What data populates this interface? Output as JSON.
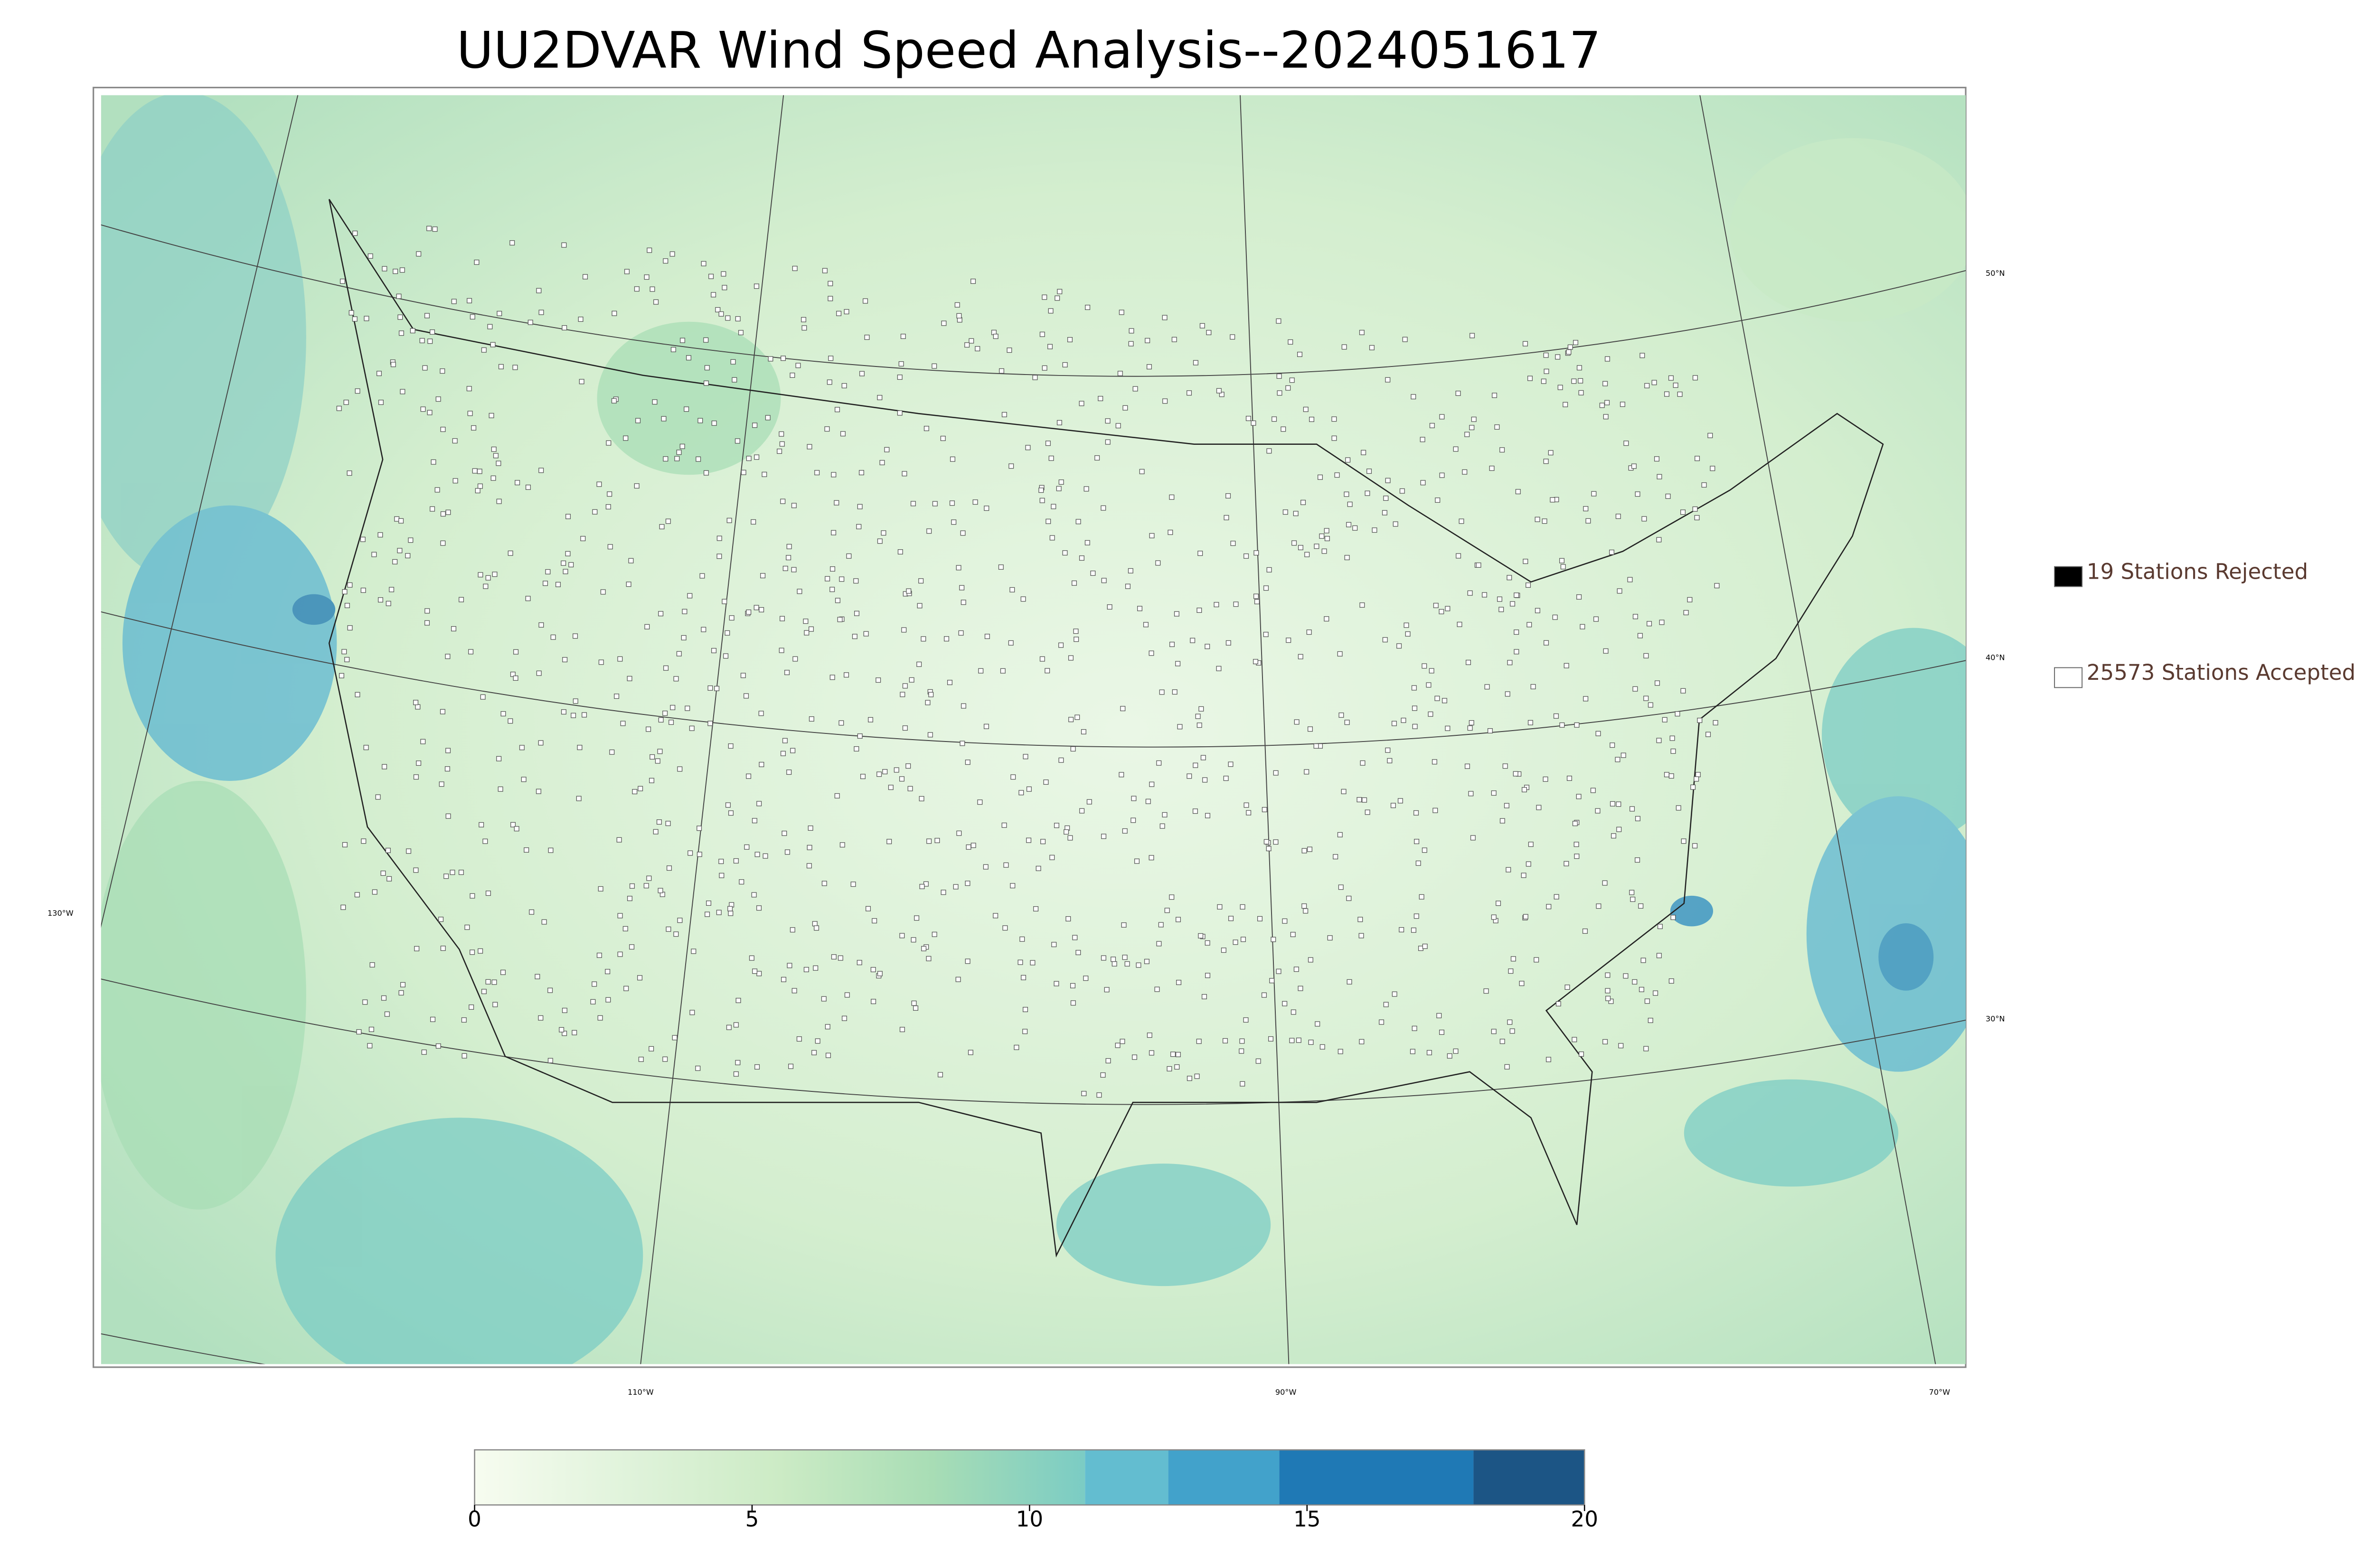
{
  "title": "UU2DVAR Wind Speed Analysis--2024051617",
  "legend": [
    {
      "label": "19 Stations Rejected",
      "fill": "#000000"
    },
    {
      "label": "25573 Stations Accepted",
      "fill": "#ffffff"
    }
  ],
  "graticule": {
    "lat": [
      "50°N",
      "40°N",
      "30°N"
    ],
    "lon": [
      "130°W",
      "110°W",
      "90°W",
      "70°W"
    ]
  },
  "colorbar": {
    "lim": [
      0,
      20
    ],
    "ticks": [
      0,
      5,
      10,
      15,
      20
    ],
    "levels": [
      0,
      11,
      12.5,
      14.5,
      18,
      20
    ],
    "gradient": [
      "#f7fcf0",
      "#e0f3db",
      "#ccebc5",
      "#a8ddb5",
      "#7bccc4"
    ],
    "colors": [
      "#63bdd0",
      "#42a2cb",
      "#1f79b5",
      "#1c5585"
    ]
  }
}
